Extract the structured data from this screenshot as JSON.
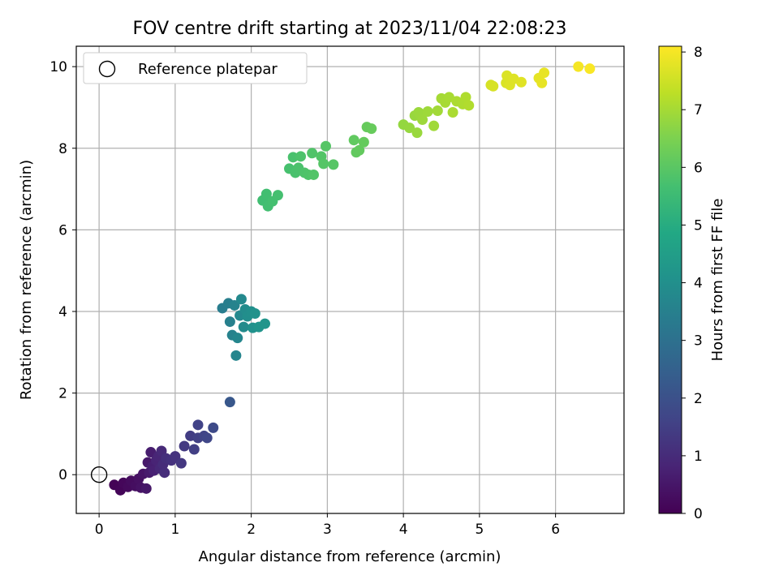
{
  "chart_data": {
    "type": "scatter",
    "title": "FOV centre drift starting at 2023/11/04 22:08:23",
    "xlabel": "Angular distance from reference (arcmin)",
    "ylabel": "Rotation from reference (arcmin)",
    "xlim": [
      -0.3,
      6.9
    ],
    "ylim": [
      -0.95,
      10.5
    ],
    "xticks": [
      0,
      1,
      2,
      3,
      4,
      5,
      6
    ],
    "yticks": [
      0,
      2,
      4,
      6,
      8,
      10
    ],
    "grid": true,
    "legend": {
      "placement": "upper-left",
      "entries": [
        "Reference platepar"
      ]
    },
    "reference_point": {
      "x": 0,
      "y": 0,
      "label": "Reference platepar"
    },
    "colorbar": {
      "label": "Hours from first FF file",
      "range": [
        0,
        8.1
      ],
      "ticks": [
        0,
        1,
        2,
        3,
        4,
        5,
        6,
        7,
        8
      ],
      "colormap": "viridis"
    },
    "points": [
      {
        "x": 0.2,
        "y": -0.25,
        "c": 0.05
      },
      {
        "x": 0.28,
        "y": -0.38,
        "c": 0.1
      },
      {
        "x": 0.32,
        "y": -0.2,
        "c": 0.15
      },
      {
        "x": 0.38,
        "y": -0.3,
        "c": 0.2
      },
      {
        "x": 0.42,
        "y": -0.15,
        "c": 0.25
      },
      {
        "x": 0.48,
        "y": -0.28,
        "c": 0.3
      },
      {
        "x": 0.52,
        "y": -0.1,
        "c": 0.35
      },
      {
        "x": 0.55,
        "y": -0.32,
        "c": 0.4
      },
      {
        "x": 0.58,
        "y": 0.02,
        "c": 0.45
      },
      {
        "x": 0.62,
        "y": -0.34,
        "c": 0.5
      },
      {
        "x": 0.64,
        "y": 0.3,
        "c": 0.55
      },
      {
        "x": 0.66,
        "y": 0.05,
        "c": 0.6
      },
      {
        "x": 0.68,
        "y": 0.55,
        "c": 0.65
      },
      {
        "x": 0.7,
        "y": 0.2,
        "c": 0.7
      },
      {
        "x": 0.72,
        "y": 0.1,
        "c": 0.75
      },
      {
        "x": 0.75,
        "y": 0.35,
        "c": 0.8
      },
      {
        "x": 0.78,
        "y": 0.45,
        "c": 0.85
      },
      {
        "x": 0.8,
        "y": 0.15,
        "c": 0.9
      },
      {
        "x": 0.82,
        "y": 0.58,
        "c": 0.95
      },
      {
        "x": 0.84,
        "y": 0.25,
        "c": 1.0
      },
      {
        "x": 0.86,
        "y": 0.05,
        "c": 1.05
      },
      {
        "x": 0.88,
        "y": 0.4,
        "c": 1.1
      },
      {
        "x": 0.95,
        "y": 0.35,
        "c": 1.15
      },
      {
        "x": 1.0,
        "y": 0.45,
        "c": 1.2
      },
      {
        "x": 1.08,
        "y": 0.28,
        "c": 1.3
      },
      {
        "x": 1.12,
        "y": 0.7,
        "c": 1.35
      },
      {
        "x": 1.2,
        "y": 0.95,
        "c": 1.45
      },
      {
        "x": 1.25,
        "y": 0.62,
        "c": 1.5
      },
      {
        "x": 1.3,
        "y": 0.9,
        "c": 1.55
      },
      {
        "x": 1.3,
        "y": 1.22,
        "c": 1.6
      },
      {
        "x": 1.38,
        "y": 0.95,
        "c": 1.65
      },
      {
        "x": 1.42,
        "y": 0.9,
        "c": 1.7
      },
      {
        "x": 1.5,
        "y": 1.15,
        "c": 1.8
      },
      {
        "x": 1.72,
        "y": 1.78,
        "c": 2.2
      },
      {
        "x": 1.62,
        "y": 4.08,
        "c": 3.4
      },
      {
        "x": 1.7,
        "y": 4.2,
        "c": 3.45
      },
      {
        "x": 1.72,
        "y": 3.75,
        "c": 3.5
      },
      {
        "x": 1.75,
        "y": 3.42,
        "c": 3.55
      },
      {
        "x": 1.78,
        "y": 4.15,
        "c": 3.6
      },
      {
        "x": 1.8,
        "y": 2.92,
        "c": 3.65
      },
      {
        "x": 1.82,
        "y": 3.35,
        "c": 3.7
      },
      {
        "x": 1.85,
        "y": 3.9,
        "c": 3.75
      },
      {
        "x": 1.87,
        "y": 4.3,
        "c": 3.8
      },
      {
        "x": 1.9,
        "y": 3.62,
        "c": 3.85
      },
      {
        "x": 1.92,
        "y": 4.05,
        "c": 3.9
      },
      {
        "x": 1.95,
        "y": 3.88,
        "c": 3.95
      },
      {
        "x": 2.0,
        "y": 4.0,
        "c": 4.0
      },
      {
        "x": 2.02,
        "y": 3.6,
        "c": 4.05
      },
      {
        "x": 2.05,
        "y": 3.95,
        "c": 4.1
      },
      {
        "x": 2.1,
        "y": 3.62,
        "c": 4.15
      },
      {
        "x": 2.18,
        "y": 3.7,
        "c": 4.2
      },
      {
        "x": 2.15,
        "y": 6.72,
        "c": 5.6
      },
      {
        "x": 2.2,
        "y": 6.88,
        "c": 5.62
      },
      {
        "x": 2.22,
        "y": 6.58,
        "c": 5.64
      },
      {
        "x": 2.28,
        "y": 6.7,
        "c": 5.66
      },
      {
        "x": 2.35,
        "y": 6.85,
        "c": 5.68
      },
      {
        "x": 2.5,
        "y": 7.5,
        "c": 5.72
      },
      {
        "x": 2.55,
        "y": 7.78,
        "c": 5.74
      },
      {
        "x": 2.58,
        "y": 7.4,
        "c": 5.76
      },
      {
        "x": 2.62,
        "y": 7.52,
        "c": 5.78
      },
      {
        "x": 2.65,
        "y": 7.8,
        "c": 5.8
      },
      {
        "x": 2.7,
        "y": 7.4,
        "c": 5.82
      },
      {
        "x": 2.75,
        "y": 7.35,
        "c": 5.84
      },
      {
        "x": 2.8,
        "y": 7.88,
        "c": 5.86
      },
      {
        "x": 2.82,
        "y": 7.35,
        "c": 5.88
      },
      {
        "x": 2.92,
        "y": 7.8,
        "c": 5.9
      },
      {
        "x": 2.95,
        "y": 7.62,
        "c": 5.92
      },
      {
        "x": 2.98,
        "y": 8.05,
        "c": 5.94
      },
      {
        "x": 3.08,
        "y": 7.6,
        "c": 5.96
      },
      {
        "x": 3.35,
        "y": 8.2,
        "c": 6.1
      },
      {
        "x": 3.38,
        "y": 7.9,
        "c": 6.12
      },
      {
        "x": 3.42,
        "y": 7.95,
        "c": 6.14
      },
      {
        "x": 3.48,
        "y": 8.15,
        "c": 6.16
      },
      {
        "x": 3.52,
        "y": 8.52,
        "c": 6.18
      },
      {
        "x": 3.58,
        "y": 8.48,
        "c": 6.2
      },
      {
        "x": 4.0,
        "y": 8.58,
        "c": 6.8
      },
      {
        "x": 4.08,
        "y": 8.5,
        "c": 6.82
      },
      {
        "x": 4.15,
        "y": 8.8,
        "c": 6.84
      },
      {
        "x": 4.18,
        "y": 8.38,
        "c": 6.86
      },
      {
        "x": 4.2,
        "y": 8.88,
        "c": 6.88
      },
      {
        "x": 4.25,
        "y": 8.7,
        "c": 6.9
      },
      {
        "x": 4.32,
        "y": 8.9,
        "c": 6.92
      },
      {
        "x": 4.4,
        "y": 8.55,
        "c": 6.94
      },
      {
        "x": 4.45,
        "y": 8.92,
        "c": 6.96
      },
      {
        "x": 4.5,
        "y": 9.22,
        "c": 7.0
      },
      {
        "x": 4.55,
        "y": 9.12,
        "c": 7.02
      },
      {
        "x": 4.6,
        "y": 9.25,
        "c": 7.04
      },
      {
        "x": 4.65,
        "y": 8.88,
        "c": 7.06
      },
      {
        "x": 4.7,
        "y": 9.15,
        "c": 7.08
      },
      {
        "x": 4.78,
        "y": 9.08,
        "c": 7.1
      },
      {
        "x": 4.82,
        "y": 9.25,
        "c": 7.12
      },
      {
        "x": 4.86,
        "y": 9.05,
        "c": 7.14
      },
      {
        "x": 5.15,
        "y": 9.55,
        "c": 7.6
      },
      {
        "x": 5.18,
        "y": 9.52,
        "c": 7.62
      },
      {
        "x": 5.35,
        "y": 9.6,
        "c": 7.65
      },
      {
        "x": 5.36,
        "y": 9.78,
        "c": 7.67
      },
      {
        "x": 5.4,
        "y": 9.55,
        "c": 7.69
      },
      {
        "x": 5.45,
        "y": 9.7,
        "c": 7.71
      },
      {
        "x": 5.55,
        "y": 9.62,
        "c": 7.73
      },
      {
        "x": 5.78,
        "y": 9.72,
        "c": 7.8
      },
      {
        "x": 5.82,
        "y": 9.6,
        "c": 7.82
      },
      {
        "x": 5.85,
        "y": 9.85,
        "c": 7.84
      },
      {
        "x": 6.3,
        "y": 10.0,
        "c": 8.0
      },
      {
        "x": 6.45,
        "y": 9.95,
        "c": 8.05
      }
    ]
  }
}
